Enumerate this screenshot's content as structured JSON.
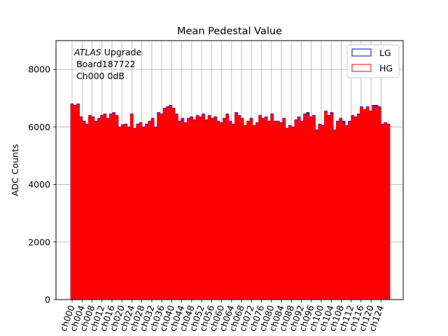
{
  "chart_data": {
    "type": "bar",
    "title": "Mean Pedestal Value",
    "xlabel": "",
    "ylabel": "ADC Counts",
    "ylim": [
      0,
      9000
    ],
    "yticks": [
      0,
      2000,
      4000,
      6000,
      8000
    ],
    "grid": true,
    "legend_position": "top-right",
    "annotation": {
      "line1_italic": "ATLAS",
      "line1_rest": " Upgrade",
      "line2": "Board187722",
      "line3": "Ch000 0dB"
    },
    "colors": {
      "lg_edge": "#0000ff",
      "hg_edge": "#ff0000",
      "hg_fill": "#ff0000",
      "lg_fill": "#0000ff"
    },
    "tick_labels": [
      "ch000",
      "ch004",
      "ch008",
      "ch012",
      "ch016",
      "ch020",
      "ch024",
      "ch028",
      "ch032",
      "ch036",
      "ch040",
      "ch044",
      "ch048",
      "ch052",
      "ch056",
      "ch060",
      "ch064",
      "ch068",
      "ch072",
      "ch076",
      "ch080",
      "ch084",
      "ch088",
      "ch092",
      "ch096",
      "ch100",
      "ch104",
      "ch108",
      "ch112",
      "ch116",
      "ch120",
      "ch124"
    ],
    "series": [
      {
        "name": "LG",
        "values": [
          6800,
          6750,
          6800,
          6350,
          6200,
          6100,
          6400,
          6350,
          6200,
          6300,
          6400,
          6450,
          6300,
          6450,
          6500,
          6400,
          6000,
          6080,
          6100,
          6000,
          6450,
          5950,
          6100,
          6150,
          6000,
          6100,
          6200,
          6300,
          6000,
          6500,
          6450,
          6650,
          6700,
          6750,
          6650,
          6450,
          6200,
          6300,
          6150,
          6300,
          6350,
          6250,
          6400,
          6350,
          6450,
          6250,
          6400,
          6300,
          6350,
          6200,
          6150,
          6300,
          6450,
          6200,
          6100,
          6500,
          6400,
          6300,
          6050,
          6200,
          6300,
          6050,
          6150,
          6400,
          6300,
          6350,
          6200,
          6450,
          6200,
          6200,
          6150,
          6300,
          5950,
          6050,
          6000,
          6250,
          6350,
          6200,
          6450,
          6500,
          6350,
          6400,
          5900,
          6100,
          6050,
          6550,
          6400,
          6500,
          5900,
          6200,
          6300,
          6200,
          6050,
          6200,
          6400,
          6350,
          6450,
          6700,
          6600,
          6700,
          6550,
          6750,
          6750,
          6700,
          6100,
          6150,
          6100
        ]
      },
      {
        "name": "HG",
        "values": [
          6780,
          6730,
          6780,
          6330,
          6180,
          6080,
          6380,
          6330,
          6180,
          6280,
          6380,
          6430,
          6280,
          6430,
          6480,
          6380,
          5980,
          6060,
          6080,
          5980,
          6430,
          5930,
          6080,
          6130,
          5980,
          6080,
          6180,
          6280,
          5980,
          6480,
          6430,
          6630,
          6680,
          6730,
          6630,
          6430,
          6180,
          6280,
          6130,
          6280,
          6330,
          6230,
          6380,
          6330,
          6430,
          6230,
          6380,
          6280,
          6330,
          6180,
          6130,
          6280,
          6430,
          6180,
          6080,
          6480,
          6380,
          6280,
          6030,
          6180,
          6280,
          6030,
          6130,
          6380,
          6280,
          6330,
          6180,
          6430,
          6180,
          6180,
          6130,
          6280,
          5930,
          6030,
          5980,
          6230,
          6330,
          6180,
          6430,
          6430,
          6330,
          6380,
          5880,
          6080,
          6030,
          6530,
          6380,
          6480,
          5880,
          6180,
          6280,
          6130,
          6030,
          6180,
          6380,
          6330,
          6430,
          6680,
          6580,
          6680,
          6530,
          6730,
          6700,
          6680,
          6080,
          6130,
          6080
        ]
      }
    ]
  }
}
